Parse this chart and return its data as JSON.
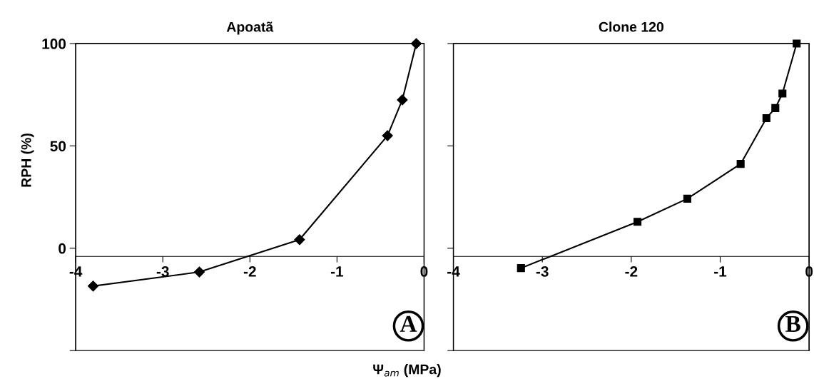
{
  "chart_data": [
    {
      "type": "line",
      "title": "Apoatã",
      "xlabel": "Ψ$_{am}$ (MPa)",
      "ylabel": "RPH (%)",
      "xlim": [
        -4,
        0
      ],
      "xticks": [
        -4,
        -3,
        -2,
        -1,
        0
      ],
      "ylim": [
        -50,
        100
      ],
      "yticks": [
        {
          "value": -50,
          "label": null
        },
        0,
        50,
        100
      ],
      "grid": false,
      "legend": false,
      "marker": "diamond",
      "line_style": "solid",
      "annotations": [
        "A"
      ],
      "series": [
        {
          "color": "#000000",
          "x": [
            -3.8,
            -2.58,
            -1.43,
            -0.42,
            -0.25,
            -0.09
          ],
          "values": [
            -18.5,
            -11.6,
            4.2,
            55,
            72.5,
            100
          ]
        }
      ]
    },
    {
      "type": "line",
      "title": "Clone 120",
      "xlim": [
        -4,
        0
      ],
      "xticks": [
        -4,
        -3,
        -2,
        -1,
        0
      ],
      "ylim": [
        -50,
        100
      ],
      "yticks": [
        {
          "value": -50,
          "label": null
        },
        0,
        50,
        100
      ],
      "tick_labels": "x",
      "grid": false,
      "legend": false,
      "marker": "square",
      "line_style": "solid",
      "annotations": [
        "B"
      ],
      "series": [
        {
          "color": "#000000",
          "x": [
            -3.24,
            -1.93,
            -1.37,
            -0.77,
            -0.48,
            -0.38,
            -0.3,
            -0.14
          ],
          "values": [
            -9.7,
            12.9,
            24.2,
            41.2,
            63.6,
            68.5,
            75.6,
            100
          ]
        }
      ]
    }
  ]
}
